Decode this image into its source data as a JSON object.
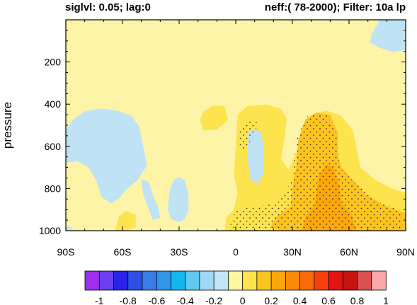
{
  "chart_data": {
    "type": "heatmap",
    "header_left": "siglvl: 0.05; lag:0",
    "header_right": "neff:( 78-2000); Filter: 10a lp",
    "ylabel": "pressure",
    "x_ticks": [
      "90S",
      "60S",
      "30S",
      "0",
      "30N",
      "60N",
      "90N"
    ],
    "x_tick_values": [
      -90,
      -60,
      -30,
      0,
      30,
      60,
      90
    ],
    "xlim": [
      -90,
      90
    ],
    "y_ticks": [
      "200",
      "400",
      "600",
      "800",
      "1000"
    ],
    "y_tick_values": [
      200,
      400,
      600,
      800,
      1000
    ],
    "ylim": [
      1000,
      0
    ],
    "colorbar": {
      "labels": [
        "-1",
        "-0.8",
        "-0.6",
        "-0.4",
        "-0.2",
        "0",
        "0.2",
        "0.4",
        "0.6",
        "0.8",
        "1"
      ],
      "colors": [
        "#9b30ef",
        "#6a3df0",
        "#2a24e8",
        "#2e4ee6",
        "#3b7be9",
        "#2f96ea",
        "#16b5ef",
        "#5fc7f0",
        "#9fd9f5",
        "#c2e6f7",
        "#fdf7a2",
        "#fde34e",
        "#fcc321",
        "#fba70d",
        "#fb8a09",
        "#f76a0a",
        "#f83f0d",
        "#e11410",
        "#c61410",
        "#d95050",
        "#fba8a8"
      ]
    },
    "background_color": "#fdf4a7",
    "regions": [
      {
        "color": "#bfe3f5",
        "points": [
          [
            -90,
            520
          ],
          [
            -86,
            470
          ],
          [
            -80,
            435
          ],
          [
            -72,
            420
          ],
          [
            -63,
            430
          ],
          [
            -55,
            455
          ],
          [
            -51,
            510
          ],
          [
            -49,
            600
          ],
          [
            -47,
            690
          ],
          [
            -52,
            760
          ],
          [
            -58,
            805
          ],
          [
            -62,
            848
          ],
          [
            -66,
            870
          ],
          [
            -71,
            842
          ],
          [
            -74,
            760
          ],
          [
            -78,
            700
          ],
          [
            -84,
            670
          ],
          [
            -90,
            678
          ]
        ]
      },
      {
        "color": "#bfe3f5",
        "points": [
          [
            -30,
            745
          ],
          [
            -27,
            760
          ],
          [
            -25,
            830
          ],
          [
            -25,
            900
          ],
          [
            -27,
            945
          ],
          [
            -30,
            958
          ],
          [
            -34,
            948
          ],
          [
            -36,
            900
          ],
          [
            -35,
            810
          ],
          [
            -33,
            760
          ]
        ]
      },
      {
        "color": "#bfe3f5",
        "points": [
          [
            -50,
            755
          ],
          [
            -46,
            770
          ],
          [
            -44,
            830
          ],
          [
            -41,
            890
          ],
          [
            -40,
            940
          ],
          [
            -44,
            948
          ],
          [
            -46,
            900
          ],
          [
            -49,
            830
          ]
        ]
      },
      {
        "color": "#bfe3f5",
        "points": [
          [
            8,
            740
          ],
          [
            11,
            750
          ],
          [
            13,
            810
          ],
          [
            12,
            895
          ],
          [
            10,
            915
          ],
          [
            7,
            902
          ],
          [
            6,
            820
          ]
        ]
      },
      {
        "color": "#bfe3f5",
        "points": [
          [
            -90,
            985
          ],
          [
            -88,
            978
          ],
          [
            -86,
            995
          ],
          [
            -88,
            1000
          ],
          [
            -90,
            1000
          ]
        ]
      },
      {
        "color": "#bfe3f5",
        "points": [
          [
            76,
            0
          ],
          [
            90,
            0
          ],
          [
            90,
            145
          ],
          [
            83,
            152
          ],
          [
            76,
            132
          ],
          [
            71,
            108
          ],
          [
            72,
            70
          ],
          [
            74,
            38
          ]
        ]
      },
      {
        "color": "#fde34e",
        "points": [
          [
            -17,
            435
          ],
          [
            -12,
            405
          ],
          [
            -6,
            410
          ],
          [
            -4,
            475
          ],
          [
            -10,
            520
          ],
          [
            -17,
            525
          ],
          [
            -19,
            475
          ]
        ]
      },
      {
        "color": "#fde34e",
        "points": [
          [
            1,
            450
          ],
          [
            6,
            410
          ],
          [
            16,
            402
          ],
          [
            24,
            422
          ],
          [
            27,
            470
          ],
          [
            26,
            555
          ],
          [
            24,
            660
          ],
          [
            28,
            710
          ],
          [
            33,
            610
          ],
          [
            35,
            505
          ],
          [
            40,
            450
          ],
          [
            48,
            430
          ],
          [
            56,
            455
          ],
          [
            62,
            525
          ],
          [
            64,
            610
          ],
          [
            66,
            700
          ],
          [
            74,
            760
          ],
          [
            84,
            805
          ],
          [
            90,
            820
          ],
          [
            90,
            1000
          ],
          [
            -6,
            1000
          ],
          [
            -5,
            935
          ],
          [
            -1,
            900
          ],
          [
            1,
            820
          ],
          [
            -1,
            740
          ],
          [
            0,
            600
          ]
        ]
      },
      {
        "color": "#bfe3f5",
        "points": [
          [
            6,
            540
          ],
          [
            9,
            520
          ],
          [
            13,
            530
          ],
          [
            15,
            600
          ],
          [
            15,
            720
          ],
          [
            12,
            775
          ],
          [
            8,
            765
          ],
          [
            6,
            650
          ]
        ]
      },
      {
        "color": "#fde34e",
        "points": [
          [
            -62,
            935
          ],
          [
            -58,
            905
          ],
          [
            -53,
            925
          ],
          [
            -53,
            985
          ],
          [
            -58,
            1000
          ],
          [
            -64,
            1000
          ]
        ]
      },
      {
        "color": "#fcc321",
        "points": [
          [
            33,
            575
          ],
          [
            37,
            470
          ],
          [
            43,
            440
          ],
          [
            50,
            450
          ],
          [
            54,
            535
          ],
          [
            54,
            640
          ],
          [
            56,
            700
          ],
          [
            62,
            760
          ],
          [
            69,
            830
          ],
          [
            79,
            880
          ],
          [
            90,
            918
          ],
          [
            90,
            1000
          ],
          [
            25,
            1000
          ],
          [
            18,
            985
          ],
          [
            22,
            930
          ],
          [
            29,
            885
          ],
          [
            30,
            800
          ],
          [
            32,
            700
          ]
        ]
      },
      {
        "color": "#fba70d",
        "points": [
          [
            44,
            740
          ],
          [
            48,
            685
          ],
          [
            52,
            705
          ],
          [
            55,
            790
          ],
          [
            56,
            870
          ],
          [
            61,
            920
          ],
          [
            64,
            1000
          ],
          [
            35,
            1000
          ],
          [
            37,
            935
          ],
          [
            42,
            880
          ],
          [
            43,
            800
          ]
        ]
      },
      {
        "color": "#fba70d",
        "points": [
          [
            37,
            960
          ],
          [
            42,
            935
          ],
          [
            46,
            950
          ],
          [
            46,
            1000
          ],
          [
            36,
            1000
          ]
        ]
      }
    ],
    "stipple": [
      {
        "points": [
          [
            32,
            560
          ],
          [
            38,
            455
          ],
          [
            48,
            448
          ],
          [
            54,
            550
          ],
          [
            55,
            700
          ],
          [
            64,
            780
          ],
          [
            75,
            860
          ],
          [
            88,
            900
          ],
          [
            88,
            1000
          ],
          [
            -4,
            1000
          ],
          [
            0,
            900
          ],
          [
            22,
            870
          ],
          [
            30,
            760
          ]
        ]
      },
      {
        "points": [
          [
            2,
            510
          ],
          [
            7,
            468
          ],
          [
            12,
            490
          ],
          [
            9,
            560
          ],
          [
            4,
            620
          ],
          [
            1,
            580
          ]
        ]
      }
    ]
  }
}
